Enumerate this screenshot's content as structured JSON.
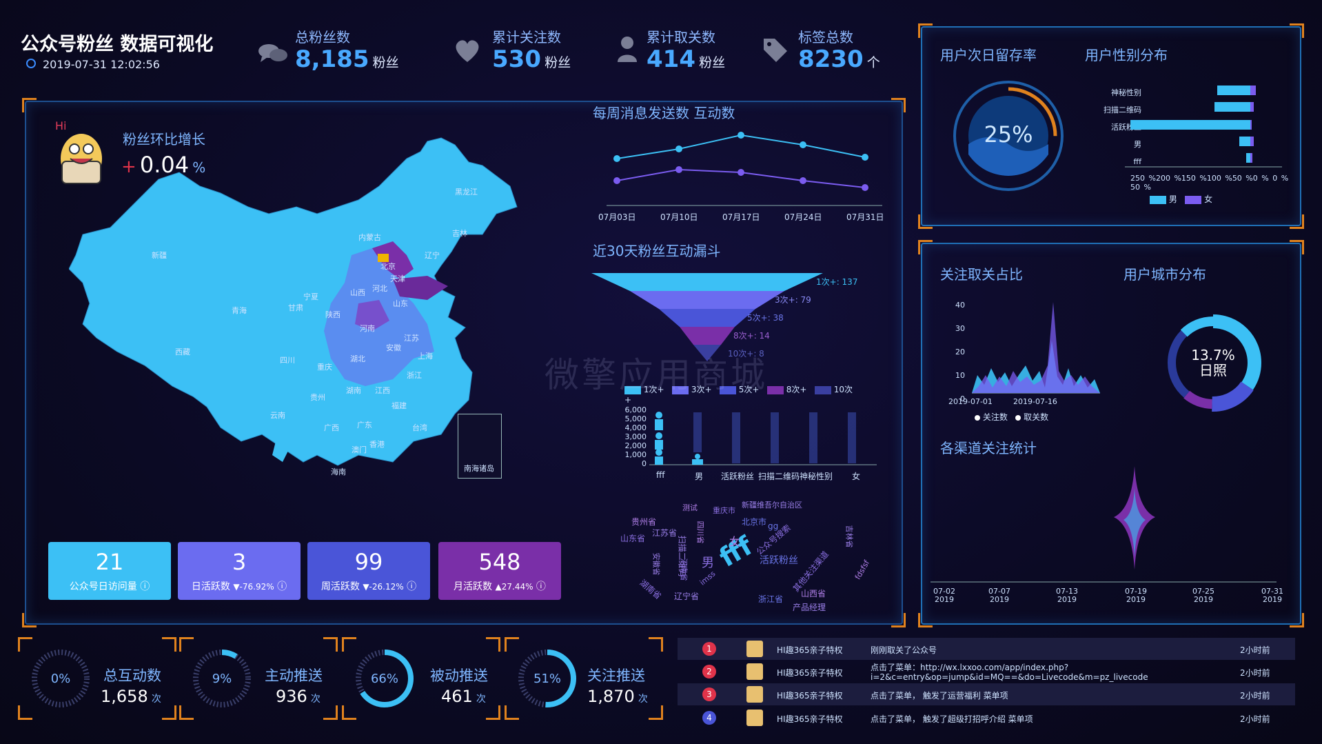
{
  "header": {
    "title": "公众号粉丝 数据可视化",
    "datetime": "2019-07-31 12:02:56"
  },
  "stats": [
    {
      "label": "总粉丝数",
      "value": "8,185",
      "unit": "粉丝",
      "icon": "chat-icon"
    },
    {
      "label": "累计关注数",
      "value": "530",
      "unit": "粉丝",
      "icon": "heart-icon"
    },
    {
      "label": "累计取关数",
      "value": "414",
      "unit": "粉丝",
      "icon": "user-icon"
    },
    {
      "label": "标签总数",
      "value": "8230",
      "unit": "个",
      "icon": "tag-icon"
    }
  ],
  "map": {
    "growth_label": "粉丝环比增长",
    "growth_sign": "+",
    "growth_value": "0.04",
    "growth_unit": "%",
    "mascot_text": "Hi",
    "regions": [
      "黑龙江",
      "吉林",
      "辽宁",
      "内蒙古",
      "北京",
      "天津",
      "河北",
      "山西",
      "山东",
      "新疆",
      "青海",
      "甘肃",
      "宁夏",
      "陕西",
      "河南",
      "江苏",
      "安徽",
      "上海",
      "西藏",
      "四川",
      "重庆",
      "湖北",
      "浙江",
      "湖南",
      "江西",
      "贵州",
      "福建",
      "云南",
      "广西",
      "广东",
      "台湾",
      "香港",
      "澳门",
      "海南"
    ],
    "inset_label": "南海诸岛"
  },
  "kpis": [
    {
      "value": "21",
      "label": "公众号日访问量",
      "change": "",
      "color": "#3cc0f5"
    },
    {
      "value": "3",
      "label": "日活跃数",
      "change": "▼-76.92%",
      "color": "#6b6cf0"
    },
    {
      "value": "99",
      "label": "周活跃数",
      "change": "▼-26.12%",
      "color": "#4a55d8"
    },
    {
      "value": "548",
      "label": "月活跃数",
      "change": "▲27.44%",
      "color": "#7a2fa8"
    }
  ],
  "rings": [
    {
      "percent": "0%",
      "label": "总互动数",
      "value": "1,658",
      "unit": "次",
      "fill": 0.0
    },
    {
      "percent": "9%",
      "label": "主动推送",
      "value": "936",
      "unit": "次",
      "fill": 0.09
    },
    {
      "percent": "66%",
      "label": "被动推送",
      "value": "461",
      "unit": "次",
      "fill": 0.66
    },
    {
      "percent": "51%",
      "label": "关注推送",
      "value": "1,870",
      "unit": "次",
      "fill": 0.51
    }
  ],
  "weekly": {
    "title": "每周消息发送数 互动数",
    "categories": [
      "07月03日",
      "07月10日",
      "07月17日",
      "07月24日",
      "07月31日"
    ]
  },
  "funnel": {
    "title": "近30天粉丝互动漏斗",
    "labels": [
      "1次+: 137",
      "3次+: 79",
      "5次+: 38",
      "8次+: 14",
      "10次+: 8"
    ],
    "legend": [
      "1次+",
      "3次+",
      "5次+",
      "8次+",
      "10次+"
    ],
    "colors": [
      "#3cc0f5",
      "#6b6cf0",
      "#4a55d8",
      "#7a2fa8",
      "#3a3fa0"
    ]
  },
  "pictorial": {
    "yticks": [
      "6,000",
      "5,000",
      "4,000",
      "3,000",
      "2,000",
      "1,000",
      "0"
    ],
    "categories": [
      "fff",
      "男",
      "活跃粉丝",
      "扫描二维码",
      "神秘性别",
      "女"
    ]
  },
  "wordcloud": {
    "words": [
      "fff",
      "新疆维吾尔自治区",
      "重庆市",
      "北京市",
      "贵州省",
      "江苏省",
      "山东省",
      "浙江省",
      "湖南省",
      "辽宁省",
      "山西省",
      "产品经理",
      "活跃粉丝",
      "测试",
      "公众号搜索",
      "其他关注渠道",
      "扫描二维码",
      "男",
      "女",
      "gg",
      "安徽省",
      "河南省",
      "四川省",
      "吉林省",
      "fdsfsf",
      "imss"
    ]
  },
  "retention": {
    "title": "用户次日留存率",
    "value": "25%"
  },
  "gender": {
    "title": "用户性别分布",
    "categories": [
      "神秘性别",
      "扫描二维码",
      "活跃粉丝",
      "男",
      "fff"
    ],
    "xticks": [
      "250 %",
      "200 %",
      "150 %",
      "100 %",
      "50 %",
      "0 %",
      "0 %",
      "50 %"
    ],
    "legend": [
      "男",
      "女"
    ],
    "colors": [
      "#3cc0f5",
      "#7b5cf0"
    ]
  },
  "follow_ratio": {
    "title": "关注取关占比",
    "yticks": [
      "40",
      "30",
      "20",
      "10",
      "0"
    ],
    "xticks": [
      "2019-07-01",
      "2019-07-16"
    ],
    "legend": [
      "关注数",
      "取关数"
    ]
  },
  "city": {
    "title": "用户城市分布",
    "percent": "13.7%",
    "name": "日照"
  },
  "channel": {
    "title": "各渠道关注统计",
    "xticks": [
      "07-02\n2019",
      "07-07\n2019",
      "07-13\n2019",
      "07-19\n2019",
      "07-25\n2019",
      "07-31\n2019"
    ]
  },
  "feed": [
    {
      "rank": "1",
      "user": "HI趣365亲子特权",
      "action": "刚刚取关了公众号",
      "action2": "",
      "time": "2小时前",
      "color": "#e0334a"
    },
    {
      "rank": "2",
      "user": "HI趣365亲子特权",
      "action": "点击了菜单：http://wx.lxxoo.com/app/index.php?",
      "action2": "i=2&c=entry&op=jump&id=MQ==&do=Livecode&m=pz_livecode",
      "time": "2小时前",
      "color": "#e0334a"
    },
    {
      "rank": "3",
      "user": "HI趣365亲子特权",
      "action": "点击了菜单， 触发了运营福利 菜单项",
      "action2": "",
      "time": "2小时前",
      "color": "#e0334a"
    },
    {
      "rank": "4",
      "user": "HI趣365亲子特权",
      "action": "点击了菜单， 触发了超级打招呼介绍 菜单项",
      "action2": "",
      "time": "2小时前",
      "color": "#4a55d8"
    }
  ],
  "watermark": "微擎应用商城"
}
